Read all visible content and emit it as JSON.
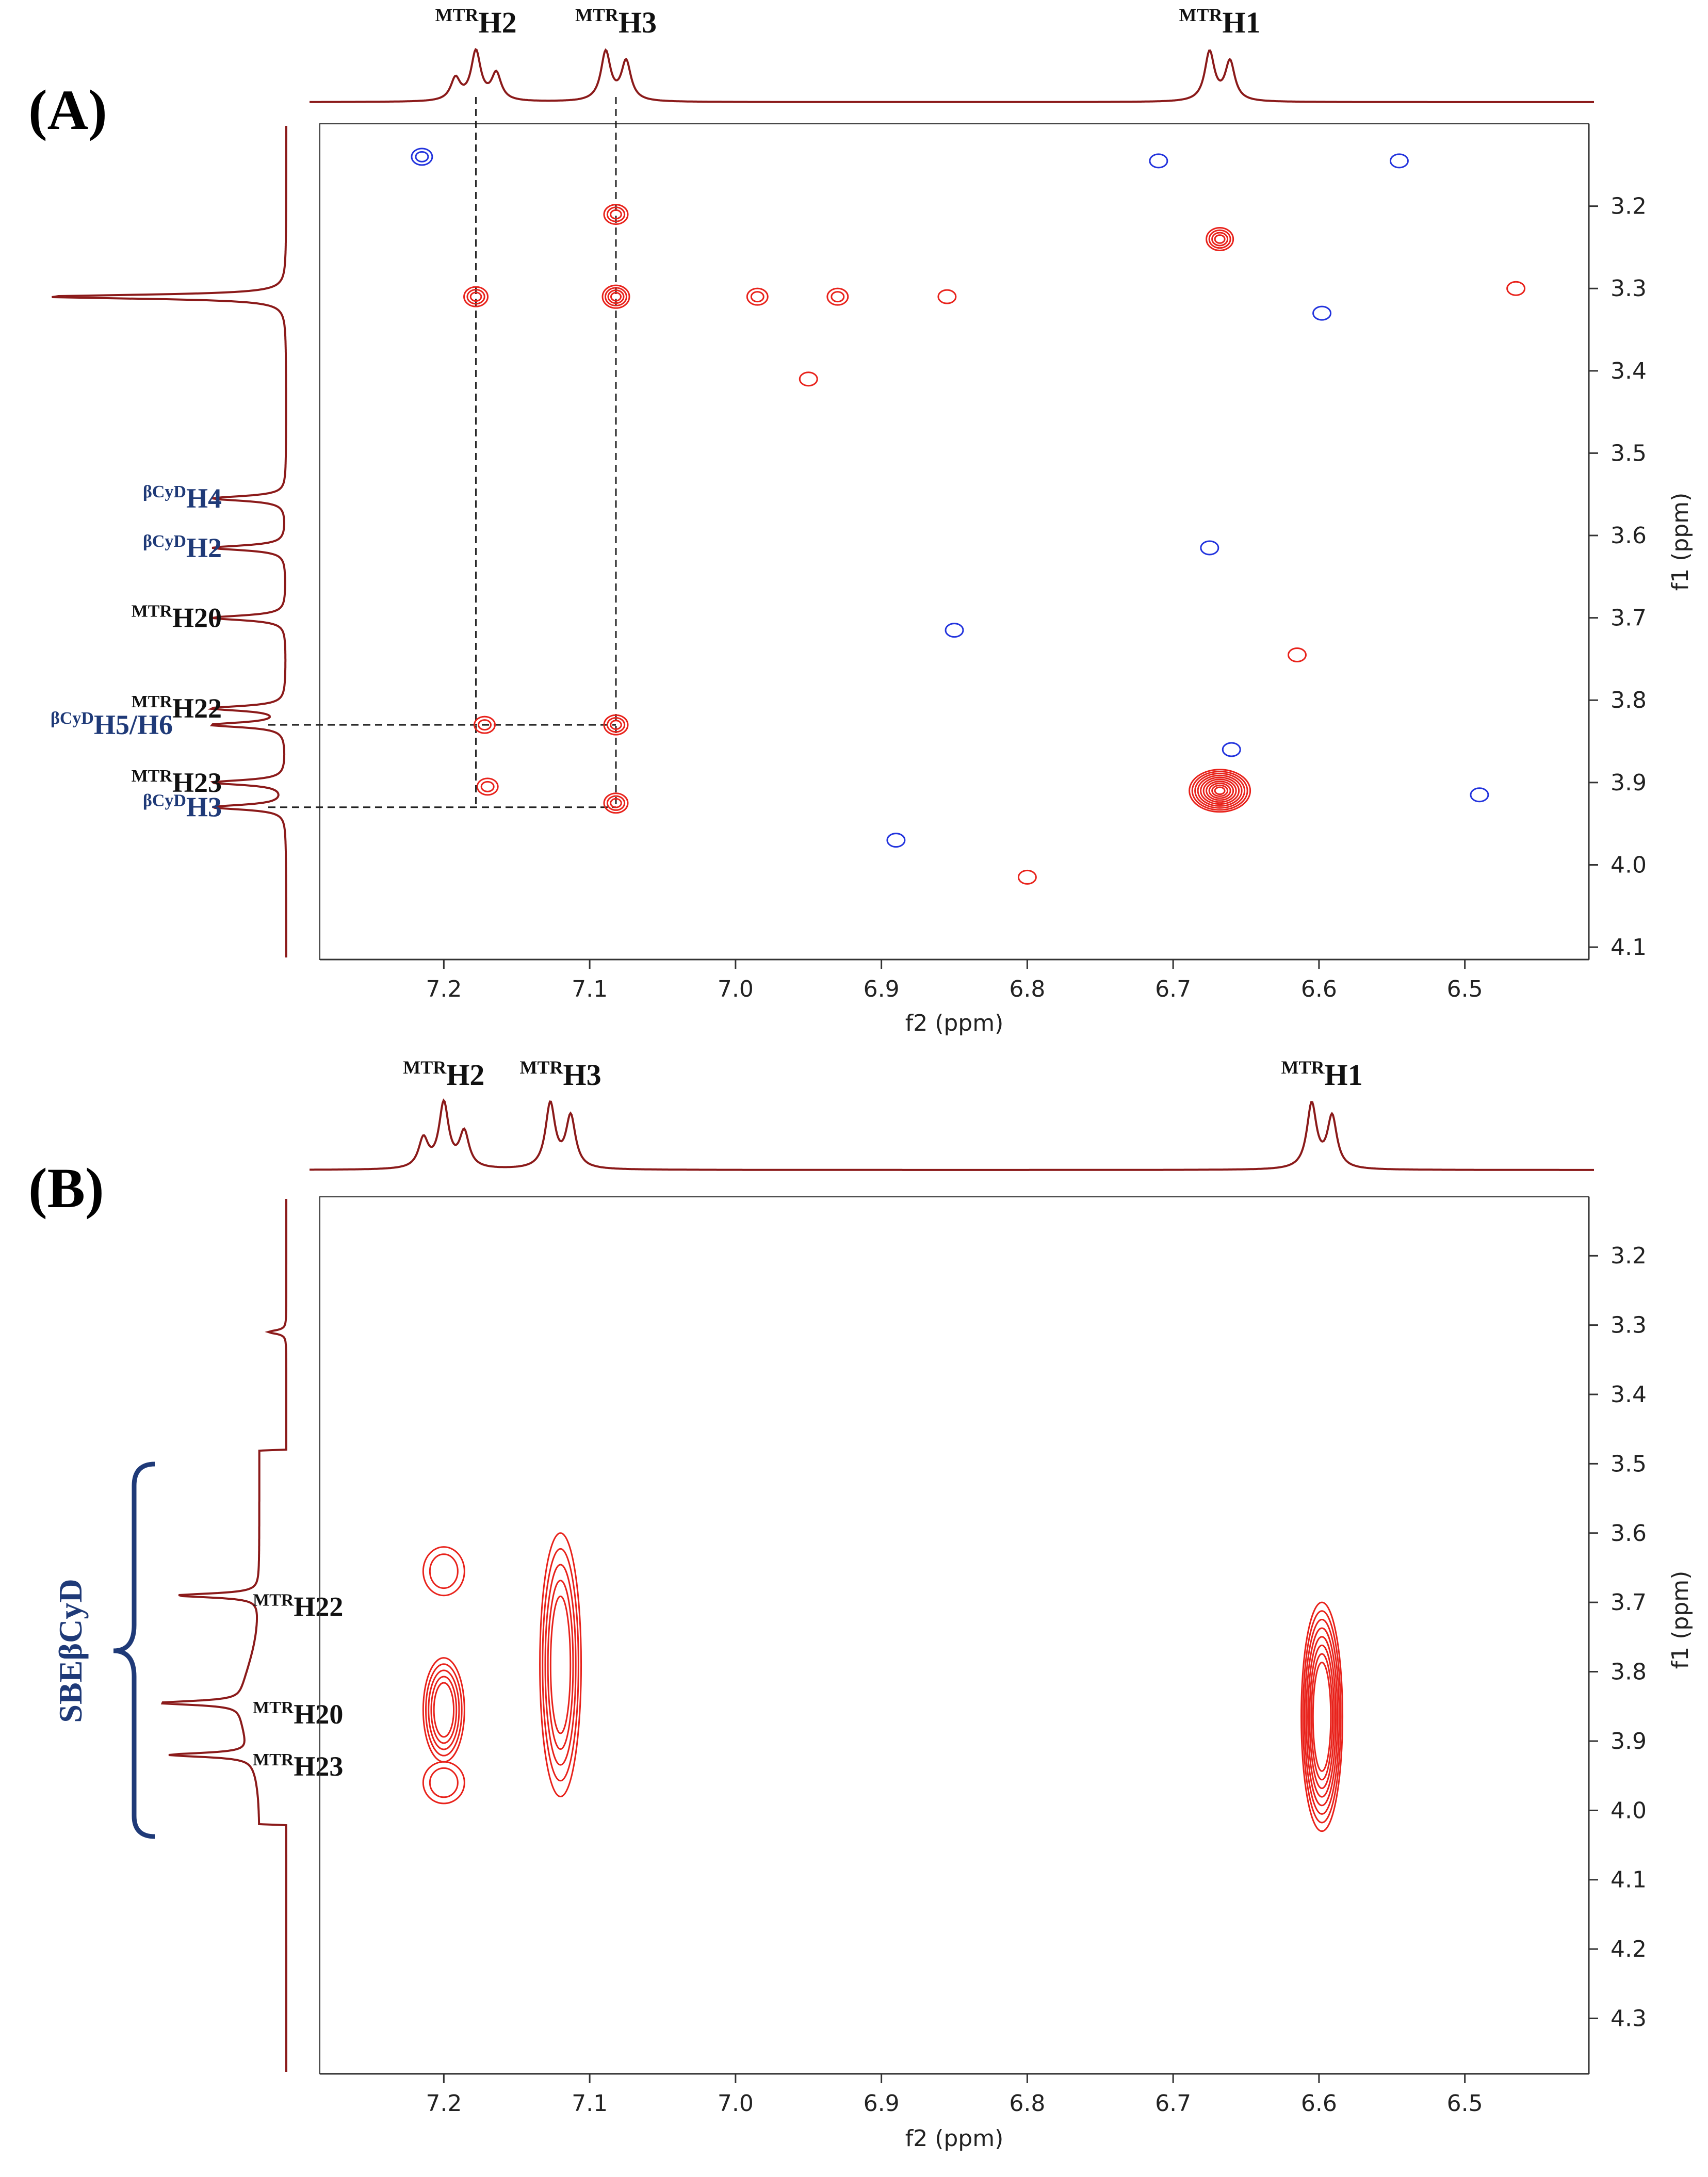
{
  "chart_data": [
    {
      "type": "heatmap",
      "panel_label": "(A)",
      "xlabel": "f2 (ppm)",
      "ylabel": "f1 (ppm)",
      "xlim": [
        7.285,
        6.415
      ],
      "ylim": [
        3.1,
        4.115
      ],
      "xticks": [
        "7.2",
        "7.1",
        "7.0",
        "6.9",
        "6.8",
        "6.7",
        "6.6",
        "6.5"
      ],
      "yticks": [
        "3.2",
        "3.3",
        "3.4",
        "3.5",
        "3.6",
        "3.7",
        "3.8",
        "3.9",
        "4.0",
        "4.1"
      ],
      "f2_peaks": [
        {
          "prefix": "MTR",
          "label": "H2",
          "ppm": 7.178
        },
        {
          "prefix": "MTR",
          "label": "H3",
          "ppm": 7.082
        },
        {
          "prefix": "MTR",
          "label": "H1",
          "ppm": 6.668
        }
      ],
      "f1_peaks": [
        {
          "prefix": "βCyD",
          "label": "H4",
          "ppm": 3.555,
          "color": "#1f3a78"
        },
        {
          "prefix": "βCyD",
          "label": "H2",
          "ppm": 3.615,
          "color": "#1f3a78"
        },
        {
          "prefix": "MTR",
          "label": "H20",
          "ppm": 3.7,
          "color": "#111111"
        },
        {
          "prefix": "MTR",
          "label": "H22",
          "ppm": 3.81,
          "color": "#111111"
        },
        {
          "prefix": "βCyD",
          "label": "H5/H6",
          "ppm": 3.83,
          "color": "#1f3a78"
        },
        {
          "prefix": "MTR",
          "label": "H23",
          "ppm": 3.9,
          "color": "#111111"
        },
        {
          "prefix": "βCyD",
          "label": "H3",
          "ppm": 3.93,
          "color": "#1f3a78"
        }
      ],
      "guide_lines": [
        {
          "axis": "f2",
          "ppm": 7.178,
          "f1_end": 3.93
        },
        {
          "axis": "f2",
          "ppm": 7.082,
          "f1_end": 3.93
        },
        {
          "axis": "f1",
          "ppm": 3.83,
          "f2_end": 7.082
        },
        {
          "axis": "f1",
          "ppm": 3.93,
          "f2_end": 7.082
        }
      ],
      "cross_peaks": [
        {
          "f2": 6.668,
          "f1": 3.91,
          "intensity": 10,
          "sign": "pos"
        },
        {
          "f2": 6.668,
          "f1": 3.24,
          "intensity": 4,
          "sign": "pos"
        },
        {
          "f2": 7.082,
          "f1": 3.31,
          "intensity": 4,
          "sign": "pos"
        },
        {
          "f2": 7.178,
          "f1": 3.31,
          "intensity": 3,
          "sign": "pos"
        },
        {
          "f2": 7.082,
          "f1": 3.21,
          "intensity": 3,
          "sign": "pos"
        },
        {
          "f2": 7.082,
          "f1": 3.83,
          "intensity": 3,
          "sign": "pos"
        },
        {
          "f2": 7.082,
          "f1": 3.925,
          "intensity": 3,
          "sign": "pos"
        },
        {
          "f2": 7.172,
          "f1": 3.83,
          "intensity": 2,
          "sign": "pos"
        },
        {
          "f2": 7.17,
          "f1": 3.905,
          "intensity": 2,
          "sign": "pos"
        },
        {
          "f2": 6.93,
          "f1": 3.31,
          "intensity": 2,
          "sign": "pos"
        },
        {
          "f2": 6.985,
          "f1": 3.31,
          "intensity": 2,
          "sign": "pos"
        },
        {
          "f2": 6.95,
          "f1": 3.41,
          "intensity": 1,
          "sign": "pos"
        },
        {
          "f2": 6.855,
          "f1": 3.31,
          "intensity": 1,
          "sign": "pos"
        },
        {
          "f2": 6.465,
          "f1": 3.3,
          "intensity": 1,
          "sign": "pos"
        },
        {
          "f2": 6.615,
          "f1": 3.745,
          "intensity": 1,
          "sign": "pos"
        },
        {
          "f2": 6.8,
          "f1": 4.015,
          "intensity": 1,
          "sign": "pos"
        },
        {
          "f2": 7.215,
          "f1": 3.14,
          "intensity": 2,
          "sign": "neg"
        },
        {
          "f2": 6.675,
          "f1": 3.615,
          "intensity": 1,
          "sign": "neg"
        },
        {
          "f2": 6.545,
          "f1": 3.145,
          "intensity": 1,
          "sign": "neg"
        },
        {
          "f2": 6.71,
          "f1": 3.145,
          "intensity": 1,
          "sign": "neg"
        },
        {
          "f2": 6.85,
          "f1": 3.715,
          "intensity": 1,
          "sign": "neg"
        },
        {
          "f2": 6.89,
          "f1": 3.97,
          "intensity": 1,
          "sign": "neg"
        },
        {
          "f2": 6.49,
          "f1": 3.915,
          "intensity": 1,
          "sign": "neg"
        },
        {
          "f2": 6.66,
          "f1": 3.86,
          "intensity": 1,
          "sign": "neg"
        },
        {
          "f2": 6.598,
          "f1": 3.33,
          "intensity": 1,
          "sign": "neg"
        }
      ]
    },
    {
      "type": "heatmap",
      "panel_label": "(B)",
      "xlabel": "f2 (ppm)",
      "ylabel": "f1 (ppm)",
      "xlim": [
        7.285,
        6.415
      ],
      "ylim": [
        3.115,
        4.38
      ],
      "xticks": [
        "7.2",
        "7.1",
        "7.0",
        "6.9",
        "6.8",
        "6.7",
        "6.6",
        "6.5"
      ],
      "yticks": [
        "3.2",
        "3.3",
        "3.4",
        "3.5",
        "3.6",
        "3.7",
        "3.8",
        "3.9",
        "4.0",
        "4.1",
        "4.2",
        "4.3"
      ],
      "f2_peaks": [
        {
          "prefix": "MTR",
          "label": "H2",
          "ppm": 7.2
        },
        {
          "prefix": "MTR",
          "label": "H3",
          "ppm": 7.12
        },
        {
          "prefix": "MTR",
          "label": "H1",
          "ppm": 6.598
        }
      ],
      "f1_peaks": [
        {
          "prefix": "MTR",
          "label": "H22",
          "ppm": 3.69,
          "color": "#111111"
        },
        {
          "prefix": "MTR",
          "label": "H20",
          "ppm": 3.845,
          "color": "#111111"
        },
        {
          "prefix": "MTR",
          "label": "H23",
          "ppm": 3.92,
          "color": "#111111"
        }
      ],
      "bracket_label": "SBEβCyD",
      "bracket_range": [
        3.49,
        4.02
      ],
      "cross_peaks": [
        {
          "f2": 7.2,
          "f1": 3.84,
          "intensity": 5,
          "sign": "pos",
          "shape": "band",
          "f1_span": [
            3.78,
            3.93
          ]
        },
        {
          "f2": 7.2,
          "f1": 3.655,
          "intensity": 2,
          "sign": "pos",
          "shape": "band",
          "f1_span": [
            3.62,
            3.69
          ]
        },
        {
          "f2": 7.2,
          "f1": 3.96,
          "intensity": 2,
          "sign": "pos",
          "shape": "band",
          "f1_span": [
            3.93,
            3.99
          ]
        },
        {
          "f2": 7.12,
          "f1": 3.81,
          "intensity": 5,
          "sign": "pos",
          "shape": "band",
          "f1_span": [
            3.6,
            3.98
          ]
        },
        {
          "f2": 6.598,
          "f1": 3.9,
          "intensity": 8,
          "sign": "pos",
          "shape": "band",
          "f1_span": [
            3.7,
            4.03
          ]
        }
      ]
    }
  ]
}
